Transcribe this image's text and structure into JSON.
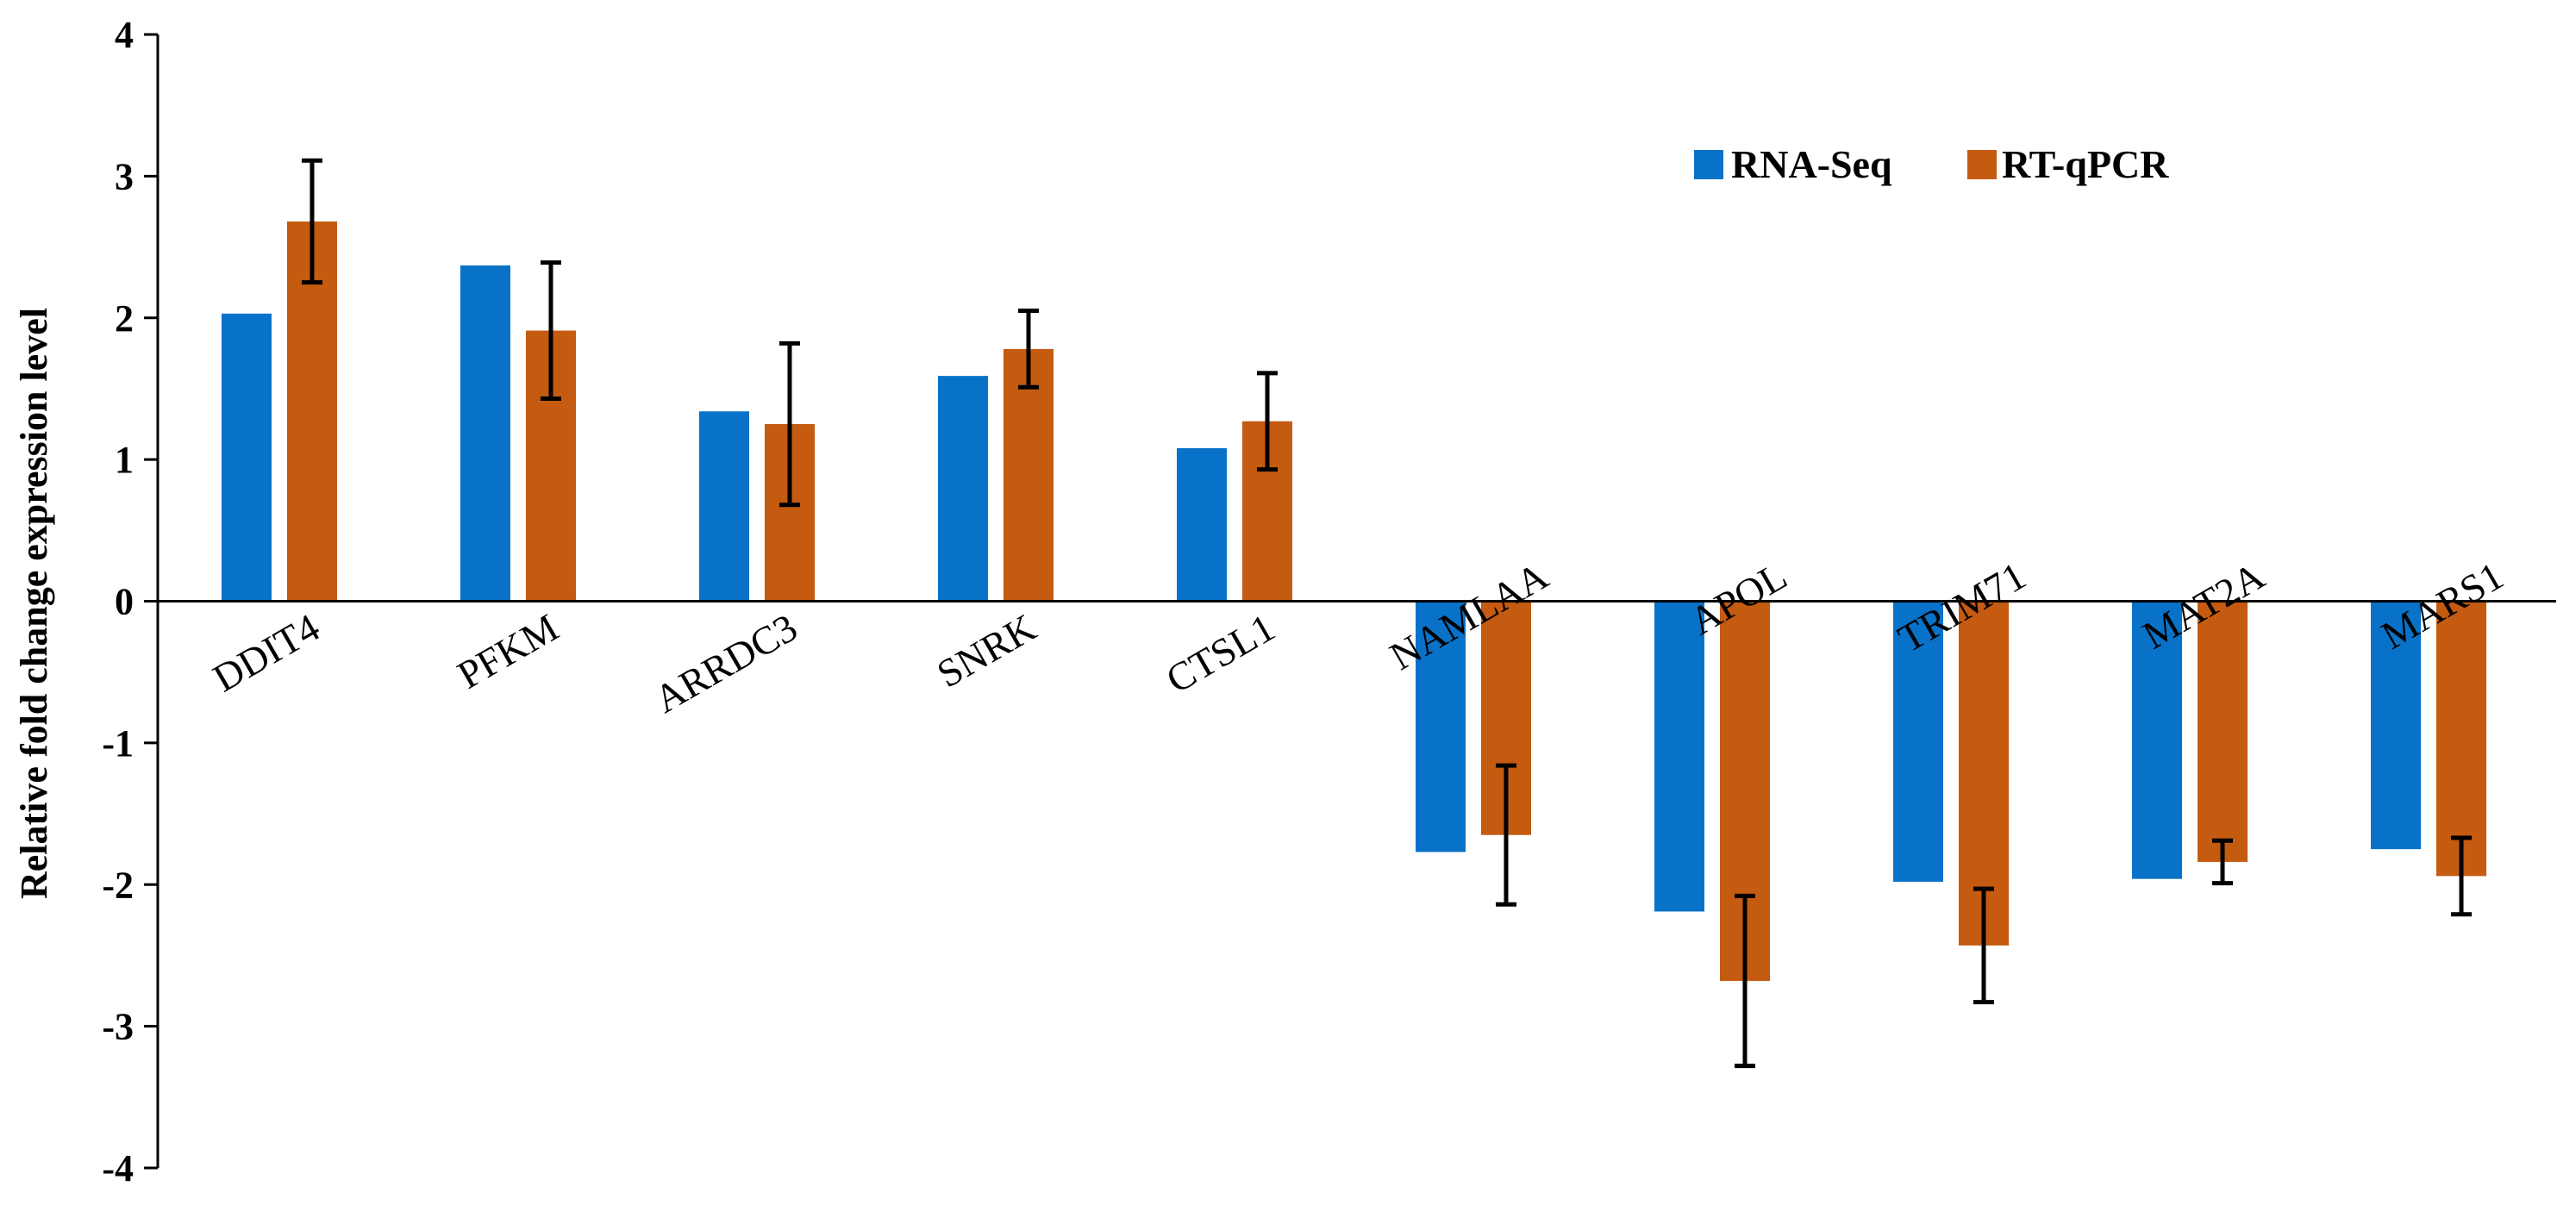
{
  "chart_data": {
    "type": "bar",
    "title": "",
    "xlabel": "",
    "ylabel": "Relative fold change expression level",
    "ylim": [
      -4,
      4
    ],
    "yticks": [
      4,
      3,
      2,
      1,
      0,
      -1,
      -2,
      -3,
      -4
    ],
    "categories": [
      "DDIT4",
      "PFKM",
      "ARRDC3",
      "SNRK",
      "CTSL1",
      "NAMLAA",
      "APOL",
      "TRIM71",
      "MAT2A",
      "MARS1"
    ],
    "series": [
      {
        "name": "RNA-Seq",
        "color": "#0872c8",
        "values": [
          2.03,
          2.37,
          1.34,
          1.59,
          1.08,
          -1.77,
          -2.19,
          -1.98,
          -1.96,
          -1.75
        ]
      },
      {
        "name": "RT-qPCR",
        "color": "#c55a11",
        "values": [
          2.68,
          1.91,
          1.25,
          1.78,
          1.27,
          -1.65,
          -2.68,
          -2.43,
          -1.84,
          -1.94
        ],
        "error": [
          0.43,
          0.48,
          0.57,
          0.27,
          0.34,
          0.49,
          0.6,
          0.4,
          0.15,
          0.27
        ]
      }
    ],
    "legend": {
      "position": "top-right",
      "entries": [
        "RNA-Seq",
        "RT-qPCR"
      ]
    },
    "grid": false
  }
}
